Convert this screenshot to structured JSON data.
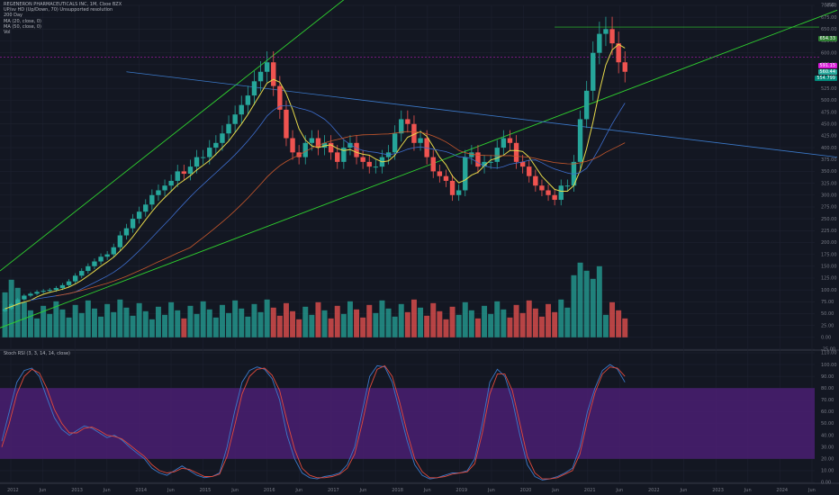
{
  "legend": {
    "title": "REGENERON PHARMACEUTICALS INC, 1M, Cboe BZX",
    "line2": "UP/sv HD (Up/Down, 70) Unsupported resolution",
    "line3": "200 Day",
    "line4": "MA (20, close, 0)",
    "line5": "MA (50, close, 0)",
    "line6": "Vol"
  },
  "rsi_legend": "Stoch RSI (3, 3, 14, 14, close)",
  "currency": "USD",
  "price_tags": {
    "high": "654.33",
    "current_top": "591.15",
    "current_bottom": "560.44",
    "ma": "554.799"
  },
  "colors": {
    "background": "#131722",
    "up": "#26a69a",
    "down": "#ef5350",
    "ma20": "#e6d94a",
    "ma50": "#3d6dcc",
    "ma200": "#c8582c",
    "trend": "#2fd12f",
    "trend_blue": "#3b79c9",
    "rsi_band": "#4a1f72",
    "k_line": "#3b79c9",
    "d_line": "#e04a3c"
  },
  "chart_data": [
    {
      "type": "candlestick",
      "title": "REGENERON PHARMACEUTICALS INC, 1M, Cboe BZX",
      "x_tick_labels": [
        "2012",
        "Jun",
        "2013",
        "Jun",
        "2014",
        "Jun",
        "2015",
        "Jun",
        "2016",
        "Jun",
        "2017",
        "Jun",
        "2018",
        "Jun",
        "2019",
        "Jun",
        "2020",
        "Jun",
        "2021",
        "Jun",
        "2022",
        "Jun",
        "2023",
        "Jun",
        "2024",
        "Jun"
      ],
      "y_tick_labels": [
        "-25.00",
        "0.00",
        "25.00",
        "50.00",
        "75.00",
        "100.00",
        "125.00",
        "150.00",
        "175.00",
        "200.00",
        "225.00",
        "250.00",
        "275.00",
        "300.00",
        "325.00",
        "350.00",
        "375.00",
        "400.00",
        "425.00",
        "450.00",
        "475.00",
        "500.00",
        "525.00",
        "550.00",
        "575.00",
        "600.00",
        "625.00",
        "650.00",
        "675.00",
        "700.00"
      ],
      "ylim": [
        -25,
        700
      ],
      "annotations": [
        "654.33 (prior high line)",
        "Trend channel lines",
        "Descending resistance line"
      ],
      "close_prices": [
        60,
        70,
        80,
        88,
        92,
        96,
        98,
        100,
        104,
        110,
        118,
        130,
        140,
        150,
        160,
        170,
        175,
        190,
        215,
        230,
        250,
        265,
        280,
        300,
        310,
        320,
        330,
        350,
        345,
        360,
        380,
        380,
        400,
        410,
        430,
        450,
        470,
        490,
        510,
        540,
        560,
        580,
        530,
        480,
        420,
        390,
        380,
        410,
        420,
        400,
        410,
        390,
        370,
        400,
        410,
        380,
        370,
        360,
        360,
        380,
        390,
        430,
        460,
        450,
        410,
        420,
        380,
        350,
        340,
        330,
        300,
        310,
        380,
        390,
        360,
        370,
        370,
        400,
        420,
        410,
        370,
        360,
        340,
        320,
        310,
        300,
        290,
        320,
        320,
        370,
        460,
        520,
        600,
        640,
        650,
        620,
        580,
        560
      ]
    },
    {
      "type": "line",
      "title": "Stoch RSI (3, 3, 14, 14, close)",
      "y_tick_labels": [
        "0.00",
        "10.00",
        "20.00",
        "30.00",
        "40.00",
        "50.00",
        "60.00",
        "70.00",
        "80.00",
        "90.00",
        "100.00",
        "110.00"
      ],
      "ylim": [
        0,
        110
      ],
      "band": [
        20,
        80
      ],
      "series": [
        {
          "values": [
            35,
            60,
            85,
            95,
            97,
            90,
            72,
            55,
            45,
            40,
            44,
            48,
            46,
            42,
            38,
            40,
            36,
            30,
            25,
            20,
            12,
            8,
            6,
            10,
            14,
            10,
            6,
            4,
            5,
            8,
            30,
            60,
            85,
            95,
            98,
            96,
            88,
            70,
            40,
            20,
            8,
            4,
            3,
            5,
            6,
            8,
            15,
            30,
            60,
            90,
            99,
            98,
            85,
            60,
            35,
            15,
            6,
            3,
            4,
            6,
            8,
            8,
            10,
            20,
            50,
            85,
            96,
            90,
            70,
            40,
            15,
            5,
            2,
            3,
            5,
            8,
            12,
            30,
            60,
            80,
            95,
            100,
            96,
            85
          ]
        },
        {
          "values": [
            30,
            50,
            75,
            90,
            96,
            93,
            80,
            62,
            50,
            42,
            42,
            46,
            47,
            44,
            40,
            39,
            37,
            32,
            27,
            22,
            15,
            10,
            8,
            9,
            12,
            11,
            8,
            5,
            5,
            7,
            22,
            48,
            75,
            90,
            96,
            97,
            91,
            78,
            52,
            28,
            12,
            6,
            4,
            4,
            5,
            7,
            12,
            24,
            50,
            80,
            96,
            99,
            90,
            68,
            42,
            20,
            9,
            4,
            4,
            5,
            7,
            8,
            9,
            16,
            42,
            75,
            92,
            92,
            78,
            50,
            22,
            8,
            3,
            3,
            4,
            7,
            10,
            24,
            52,
            76,
            92,
            98,
            97,
            90
          ]
        }
      ]
    }
  ]
}
